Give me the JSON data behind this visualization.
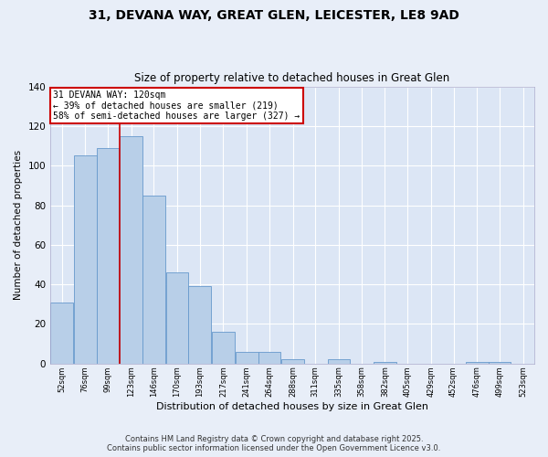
{
  "title": "31, DEVANA WAY, GREAT GLEN, LEICESTER, LE8 9AD",
  "subtitle": "Size of property relative to detached houses in Great Glen",
  "xlabel": "Distribution of detached houses by size in Great Glen",
  "ylabel": "Number of detached properties",
  "bar_color": "#b8cfe8",
  "bar_edge_color": "#6699cc",
  "bg_color": "#dce6f5",
  "fig_color": "#e8eef8",
  "grid_color": "#ffffff",
  "annotation_box_color": "#cc0000",
  "property_line_x": 123,
  "annotation_title": "31 DEVANA WAY: 120sqm",
  "annotation_line1": "← 39% of detached houses are smaller (219)",
  "annotation_line2": "58% of semi-detached houses are larger (327) →",
  "bins": [
    52,
    76,
    99,
    123,
    146,
    170,
    193,
    217,
    241,
    264,
    288,
    311,
    335,
    358,
    382,
    405,
    429,
    452,
    476,
    499,
    523
  ],
  "bin_width": 23,
  "bin_labels": [
    "52sqm",
    "76sqm",
    "99sqm",
    "123sqm",
    "146sqm",
    "170sqm",
    "193sqm",
    "217sqm",
    "241sqm",
    "264sqm",
    "288sqm",
    "311sqm",
    "335sqm",
    "358sqm",
    "382sqm",
    "405sqm",
    "429sqm",
    "452sqm",
    "476sqm",
    "499sqm",
    "523sqm"
  ],
  "values": [
    31,
    105,
    109,
    115,
    85,
    46,
    39,
    16,
    6,
    6,
    2,
    0,
    2,
    0,
    1,
    0,
    0,
    0,
    1,
    1,
    0
  ],
  "ylim": [
    0,
    140
  ],
  "yticks": [
    0,
    20,
    40,
    60,
    80,
    100,
    120,
    140
  ],
  "footer1": "Contains HM Land Registry data © Crown copyright and database right 2025.",
  "footer2": "Contains public sector information licensed under the Open Government Licence v3.0."
}
